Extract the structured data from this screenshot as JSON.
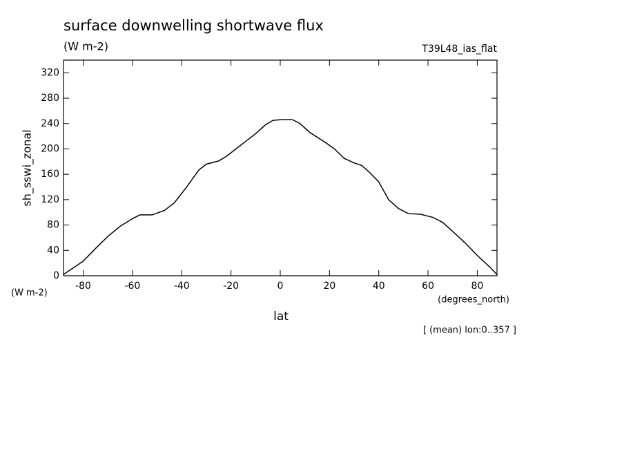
{
  "chart_data": {
    "type": "line",
    "title": "surface downwelling shortwave flux",
    "units": "(W m-2)",
    "dataset": "T39L48_ias_flat",
    "y_label": "sh_sswi_zonal",
    "y_units": "(W m-2)",
    "x_units": "(degrees_north)",
    "x_label": "lat",
    "note": "[ (mean) lon:0..357 ]",
    "x": [
      -88,
      -80,
      -75,
      -70,
      -65,
      -60,
      -57,
      -52,
      -47,
      -43,
      -38,
      -33,
      -30,
      -25,
      -22,
      -18,
      -14,
      -10,
      -6,
      -3,
      0,
      5,
      8,
      12,
      18,
      22,
      26,
      30,
      33,
      36,
      40,
      44,
      48,
      52,
      57,
      62,
      66,
      70,
      75,
      80,
      85,
      88
    ],
    "series": [
      {
        "name": "sh_sswi_zonal",
        "color": "#000000",
        "values": [
          2,
          23,
          43,
          62,
          78,
          90,
          96,
          96,
          103,
          115,
          140,
          167,
          176,
          181,
          188,
          200,
          212,
          224,
          238,
          245,
          246,
          246,
          240,
          226,
          211,
          200,
          185,
          178,
          174,
          164,
          148,
          120,
          106,
          98,
          97,
          92,
          84,
          70,
          52,
          32,
          14,
          2
        ]
      }
    ],
    "xlim": [
      -88,
      88
    ],
    "ylim": [
      0,
      340
    ],
    "xticks": [
      -80,
      -60,
      -40,
      -20,
      0,
      20,
      40,
      60,
      80
    ],
    "yticks": [
      0,
      40,
      80,
      120,
      160,
      200,
      240,
      280,
      320
    ]
  }
}
